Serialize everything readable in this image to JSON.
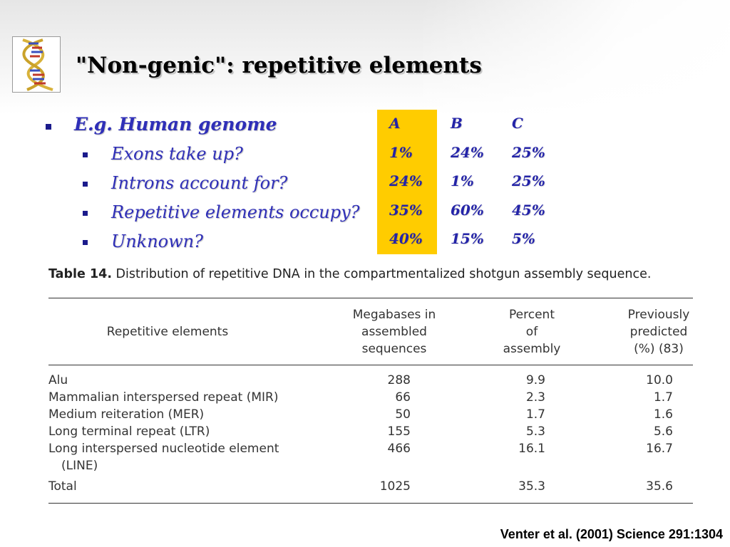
{
  "slide": {
    "title": "\"Non-genic\": repetitive elements",
    "citation": "Venter et al. (2001) Science 291:1304"
  },
  "bullets": {
    "main": "E.g. Human genome",
    "sub": [
      "Exons take up?",
      "Introns account for?",
      "Repetitive elements occupy?",
      "Unknown?"
    ]
  },
  "answer_grid": {
    "highlight_color": "#ffcc00",
    "columns": [
      {
        "header": "A",
        "values": [
          "1%",
          "24%",
          "35%",
          "40%"
        ]
      },
      {
        "header": "B",
        "values": [
          "24%",
          "1%",
          "60%",
          "15%"
        ]
      },
      {
        "header": "C",
        "values": [
          "25%",
          "25%",
          "45%",
          "5%"
        ]
      }
    ]
  },
  "table": {
    "caption_label": "Table 14.",
    "caption_text": " Distribution of repetitive DNA in the compartmentalized shotgun assembly sequence.",
    "headers": {
      "elements": "Repetitive elements",
      "megabases": [
        "Megabases in",
        "assembled",
        "sequences"
      ],
      "percent": [
        "Percent",
        "of",
        "assembly"
      ],
      "predicted": [
        "Previously",
        "predicted",
        "(%) (83)"
      ]
    },
    "rows": [
      {
        "name": "Alu",
        "megabases": "288",
        "percent": "9.9",
        "predicted": "10.0"
      },
      {
        "name": "Mammalian interspersed repeat (MIR)",
        "megabases": "66",
        "percent": "2.3",
        "predicted": "1.7"
      },
      {
        "name": "Medium reiteration (MER)",
        "megabases": "50",
        "percent": "1.7",
        "predicted": "1.6"
      },
      {
        "name": "Long terminal repeat (LTR)",
        "megabases": "155",
        "percent": "5.3",
        "predicted": "5.6"
      },
      {
        "name": "Long interspersed nucleotide element",
        "name_cont": "(LINE)",
        "megabases": "466",
        "percent": "16.1",
        "predicted": "16.7"
      }
    ],
    "total": {
      "name": "Total",
      "megabases": "1025",
      "percent": "35.3",
      "predicted": "35.6"
    }
  }
}
